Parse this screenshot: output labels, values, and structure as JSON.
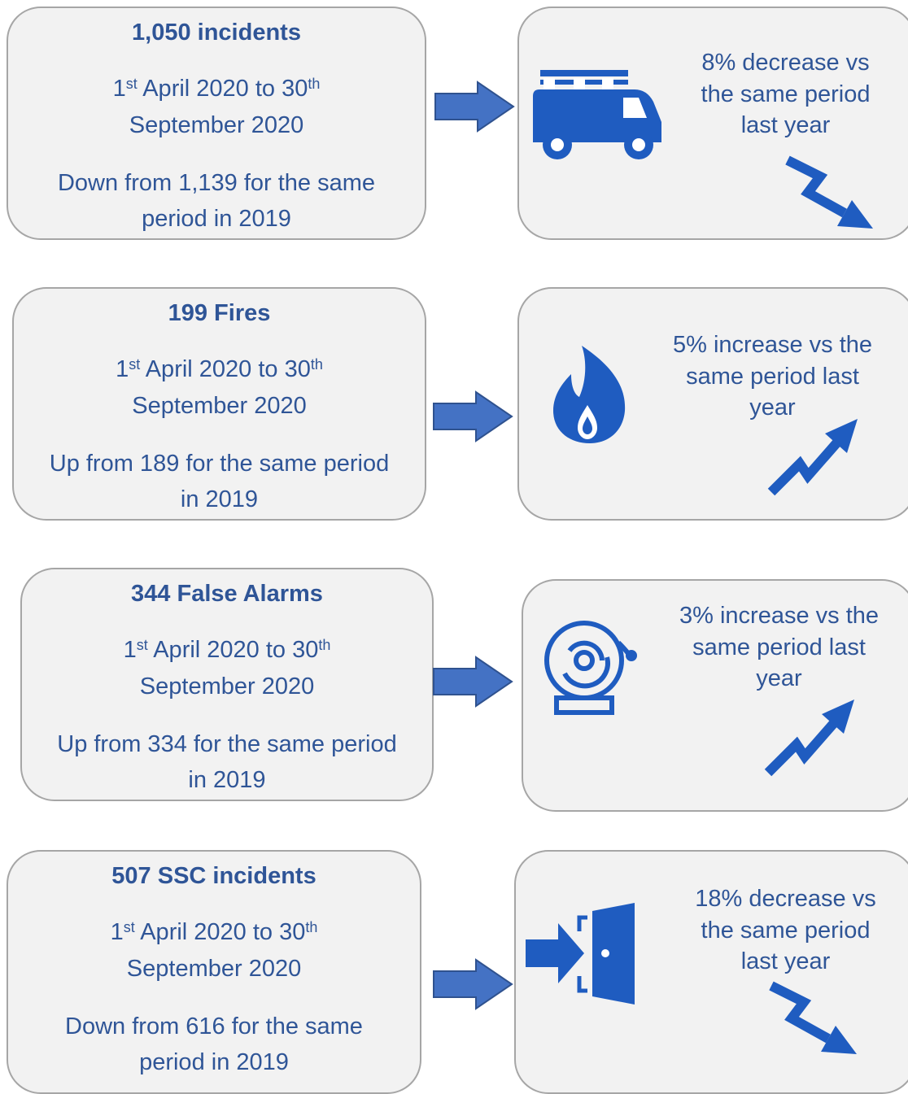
{
  "rows": [
    {
      "title": "1,050 incidents",
      "date": {
        "start_day": "1",
        "start_suffix": "st",
        "middle": "April 2020 to 30",
        "end_suffix": "th",
        "end": "September 2020"
      },
      "comparison": "Down from 1,139 for the same period in 2019",
      "change": "8% decrease vs the same period last year"
    },
    {
      "title": "199 Fires",
      "date": {
        "start_day": "1",
        "start_suffix": "st",
        "middle": "April 2020 to 30",
        "end_suffix": "th",
        "end": "September 2020"
      },
      "comparison": "Up from 189 for the same period in 2019",
      "change": "5% increase vs the same period last year"
    },
    {
      "title": "344 False Alarms",
      "date": {
        "start_day": "1",
        "start_suffix": "st",
        "middle": "April 2020 to 30",
        "end_suffix": "th",
        "end": "September 2020"
      },
      "comparison": "Up from 334 for the same period in 2019",
      "change": "3% increase vs the same period last year"
    },
    {
      "title": "507 SSC incidents",
      "date": {
        "start_day": "1",
        "start_suffix": "st",
        "middle": "April 2020 to 30",
        "end_suffix": "th",
        "end": "September 2020"
      },
      "comparison": "Down from 616 for the same period in 2019",
      "change": "18% decrease vs the same period last year"
    }
  ]
}
